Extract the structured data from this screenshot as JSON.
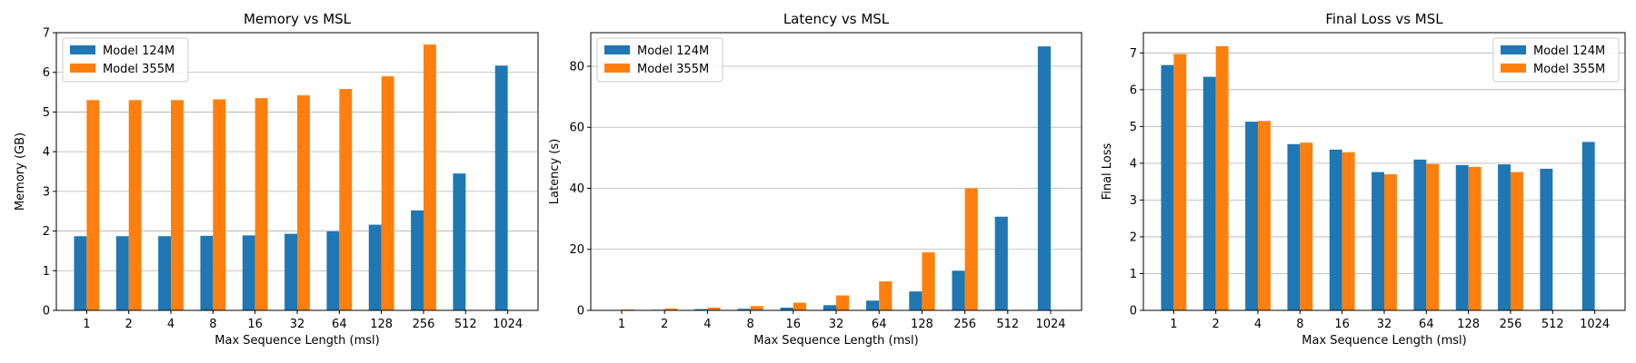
{
  "colors": {
    "series0": "#1f77b4",
    "series1": "#ff7f0e",
    "grid": "#b0b0b0"
  },
  "chart_data": [
    {
      "type": "bar",
      "title": "Memory vs MSL",
      "xlabel": "Max Sequence Length (msl)",
      "ylabel": "Memory (GB)",
      "categories": [
        "1",
        "2",
        "4",
        "8",
        "16",
        "32",
        "64",
        "128",
        "256",
        "512",
        "1024"
      ],
      "ylim": [
        0,
        7
      ],
      "yticks": [
        0,
        1,
        2,
        3,
        4,
        5,
        6,
        7
      ],
      "yticklabels": [
        "0",
        "1",
        "2",
        "3",
        "4",
        "5",
        "6",
        "7"
      ],
      "grid": "y",
      "legend": "top-left",
      "series": [
        {
          "name": "Model 124M",
          "values": [
            1.87,
            1.87,
            1.87,
            1.88,
            1.89,
            1.93,
            1.99,
            2.16,
            2.52,
            3.45,
            6.17
          ]
        },
        {
          "name": "Model 355M",
          "values": [
            5.3,
            5.3,
            5.3,
            5.32,
            5.35,
            5.42,
            5.58,
            5.9,
            6.7,
            null,
            null
          ]
        }
      ]
    },
    {
      "type": "bar",
      "title": "Latency vs MSL",
      "xlabel": "Max Sequence Length (msl)",
      "ylabel": "Latency (s)",
      "categories": [
        "1",
        "2",
        "4",
        "8",
        "16",
        "32",
        "64",
        "128",
        "256",
        "512",
        "1024"
      ],
      "ylim": [
        0,
        91
      ],
      "yticks": [
        0,
        20,
        40,
        60,
        80
      ],
      "yticklabels": [
        "0",
        "20",
        "40",
        "60",
        "80"
      ],
      "grid": "y",
      "legend": "top-left",
      "series": [
        {
          "name": "Model 124M",
          "values": [
            0.1,
            0.2,
            0.4,
            0.5,
            0.9,
            1.7,
            3.2,
            6.2,
            13.0,
            30.7,
            86.5
          ]
        },
        {
          "name": "Model 355M",
          "values": [
            0.3,
            0.6,
            0.9,
            1.4,
            2.5,
            4.9,
            9.5,
            19.0,
            40.0,
            null,
            null
          ]
        }
      ]
    },
    {
      "type": "bar",
      "title": "Final Loss vs MSL",
      "xlabel": "Max Sequence Length (msl)",
      "ylabel": "Final Loss",
      "categories": [
        "1",
        "2",
        "4",
        "8",
        "16",
        "32",
        "64",
        "128",
        "256",
        "512",
        "1024"
      ],
      "ylim": [
        0,
        7.55
      ],
      "yticks": [
        0,
        1,
        2,
        3,
        4,
        5,
        6,
        7
      ],
      "yticklabels": [
        "0",
        "1",
        "2",
        "3",
        "4",
        "5",
        "6",
        "7"
      ],
      "grid": "y",
      "legend": "top-right",
      "series": [
        {
          "name": "Model 124M",
          "values": [
            6.67,
            6.35,
            5.13,
            4.52,
            4.37,
            3.76,
            4.1,
            3.95,
            3.97,
            3.85,
            4.58
          ]
        },
        {
          "name": "Model 355M",
          "values": [
            6.97,
            7.18,
            5.15,
            4.56,
            4.3,
            3.7,
            3.98,
            3.9,
            3.76,
            null,
            null
          ]
        }
      ]
    }
  ]
}
